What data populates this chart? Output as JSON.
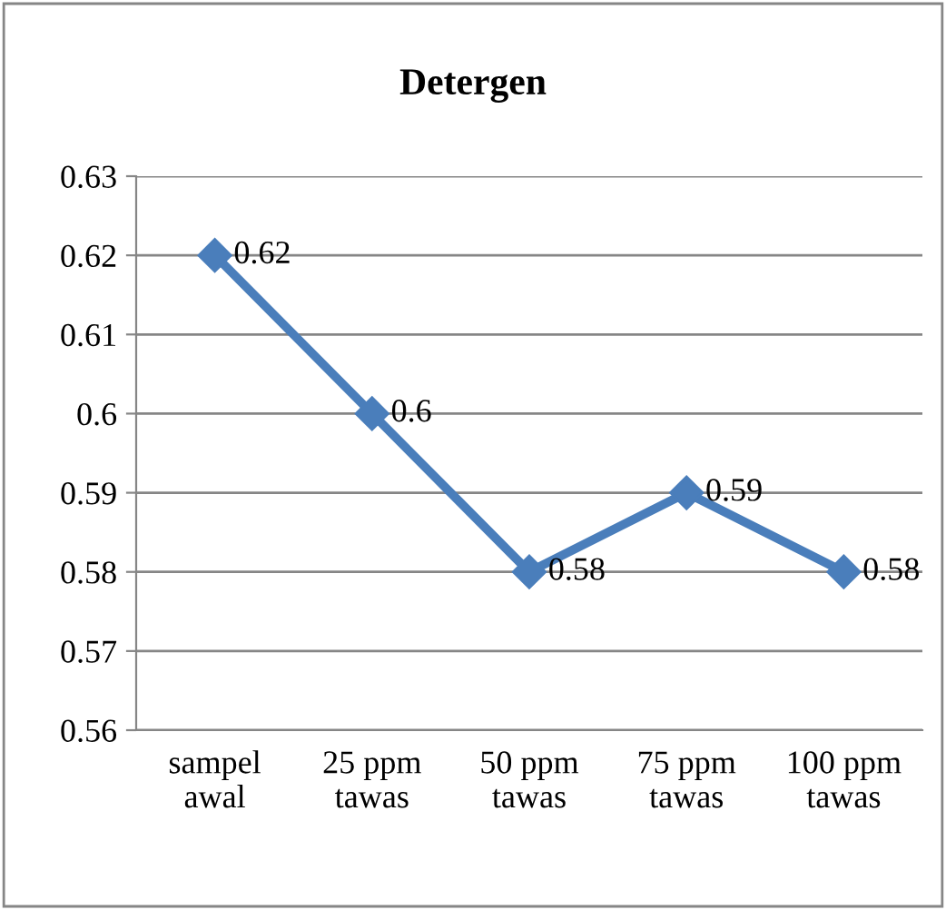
{
  "chart_data": {
    "type": "line",
    "title": "Detergen",
    "categories": [
      "sampel awal",
      "25 ppm tawas",
      "50 ppm tawas",
      "75 ppm tawas",
      "100 ppm tawas"
    ],
    "series": [
      {
        "color": "#4a7ebb",
        "values": [
          0.62,
          0.6,
          0.58,
          0.59,
          0.58
        ]
      }
    ],
    "ylim": [
      0.56,
      0.63
    ],
    "yticks": [
      0.56,
      0.57,
      0.58,
      0.59,
      0.6,
      0.61,
      0.62,
      0.63
    ],
    "grid": "y",
    "marker": "diamond",
    "line_style": "solid",
    "data_labels": true,
    "legend": false
  }
}
